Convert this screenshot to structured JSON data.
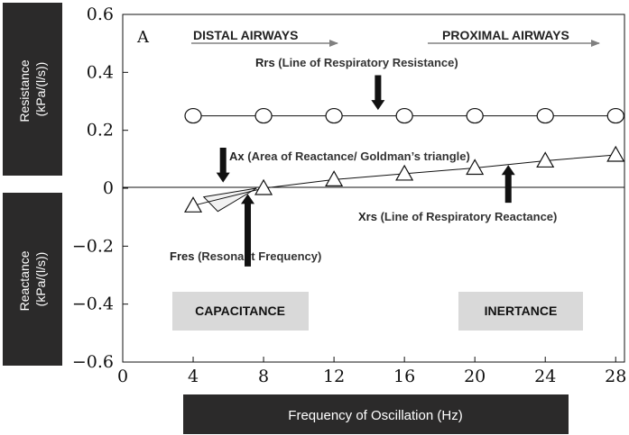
{
  "chart_data": {
    "type": "line",
    "panel_label": "A",
    "xlabel": "Frequency of Oscillation (Hz)",
    "ylabel_top": [
      "Resistance",
      "(kPa/(l/s))"
    ],
    "ylabel_bottom": [
      "Reactance",
      "(kPa/(l/s))"
    ],
    "xlim": [
      0,
      28.5
    ],
    "ylim": [
      -0.6,
      0.6
    ],
    "x_ticks": [
      0,
      4,
      8,
      12,
      16,
      20,
      24,
      28
    ],
    "y_ticks": [
      0.6,
      0.4,
      0.2,
      0,
      -0.2,
      -0.4,
      -0.6
    ],
    "y_tick_labels": [
      "0.6",
      "0.4",
      "0.2",
      "0",
      "−0.2",
      "−0.4",
      "−0.6"
    ],
    "series": [
      {
        "marker": "circle",
        "x": [
          4,
          8,
          12,
          16,
          20,
          24,
          28
        ],
        "y": [
          0.25,
          0.25,
          0.25,
          0.25,
          0.25,
          0.25,
          0.25
        ]
      },
      {
        "marker": "triangle",
        "x": [
          4,
          8,
          12,
          16,
          20,
          24,
          28
        ],
        "y": [
          -0.06,
          0.0,
          0.03,
          0.05,
          0.07,
          0.095,
          0.115
        ]
      }
    ],
    "ax_triangle": {
      "x": [
        4.6,
        7.6,
        5.4
      ],
      "y": [
        -0.03,
        0.0,
        -0.08
      ]
    },
    "annotations": {
      "distal": "DISTAL AIRWAYS",
      "proximal": "PROXIMAL AIRWAYS",
      "rrs_bold": "Rrs",
      "rrs_text": " (Line of Respiratory Resistance)",
      "ax_bold": "Ax",
      "ax_text": " (Area of Reactance/ Goldman’s triangle)",
      "xrs_bold": "Xrs",
      "xrs_text": " (Line of Respiratory Reactance)",
      "fres_bold": "Fres",
      "fres_text": " (Resonant Frequency)",
      "capacitance": "CAPACITANCE",
      "inertance": "INERTANCE"
    },
    "arrows": [
      {
        "name": "rrs-arrow",
        "x": 14.5,
        "y_from": 0.39,
        "y_to": 0.27,
        "direction": "down"
      },
      {
        "name": "ax-arrow",
        "x": 5.7,
        "y_from": 0.14,
        "y_to": 0.02,
        "direction": "down"
      },
      {
        "name": "fres-arrow",
        "x": 7.1,
        "y_from": -0.27,
        "y_to": -0.02,
        "direction": "up"
      },
      {
        "name": "xrs-arrow",
        "x": 21.9,
        "y_from": -0.05,
        "y_to": 0.08,
        "direction": "up"
      }
    ],
    "grid": false,
    "colors": {
      "label_box": "#2b2a2a",
      "region_box": "#d9d9d9",
      "ax_fill": "#f2f2f2",
      "arrow": "#111111",
      "header_arrow": "#808080"
    }
  }
}
